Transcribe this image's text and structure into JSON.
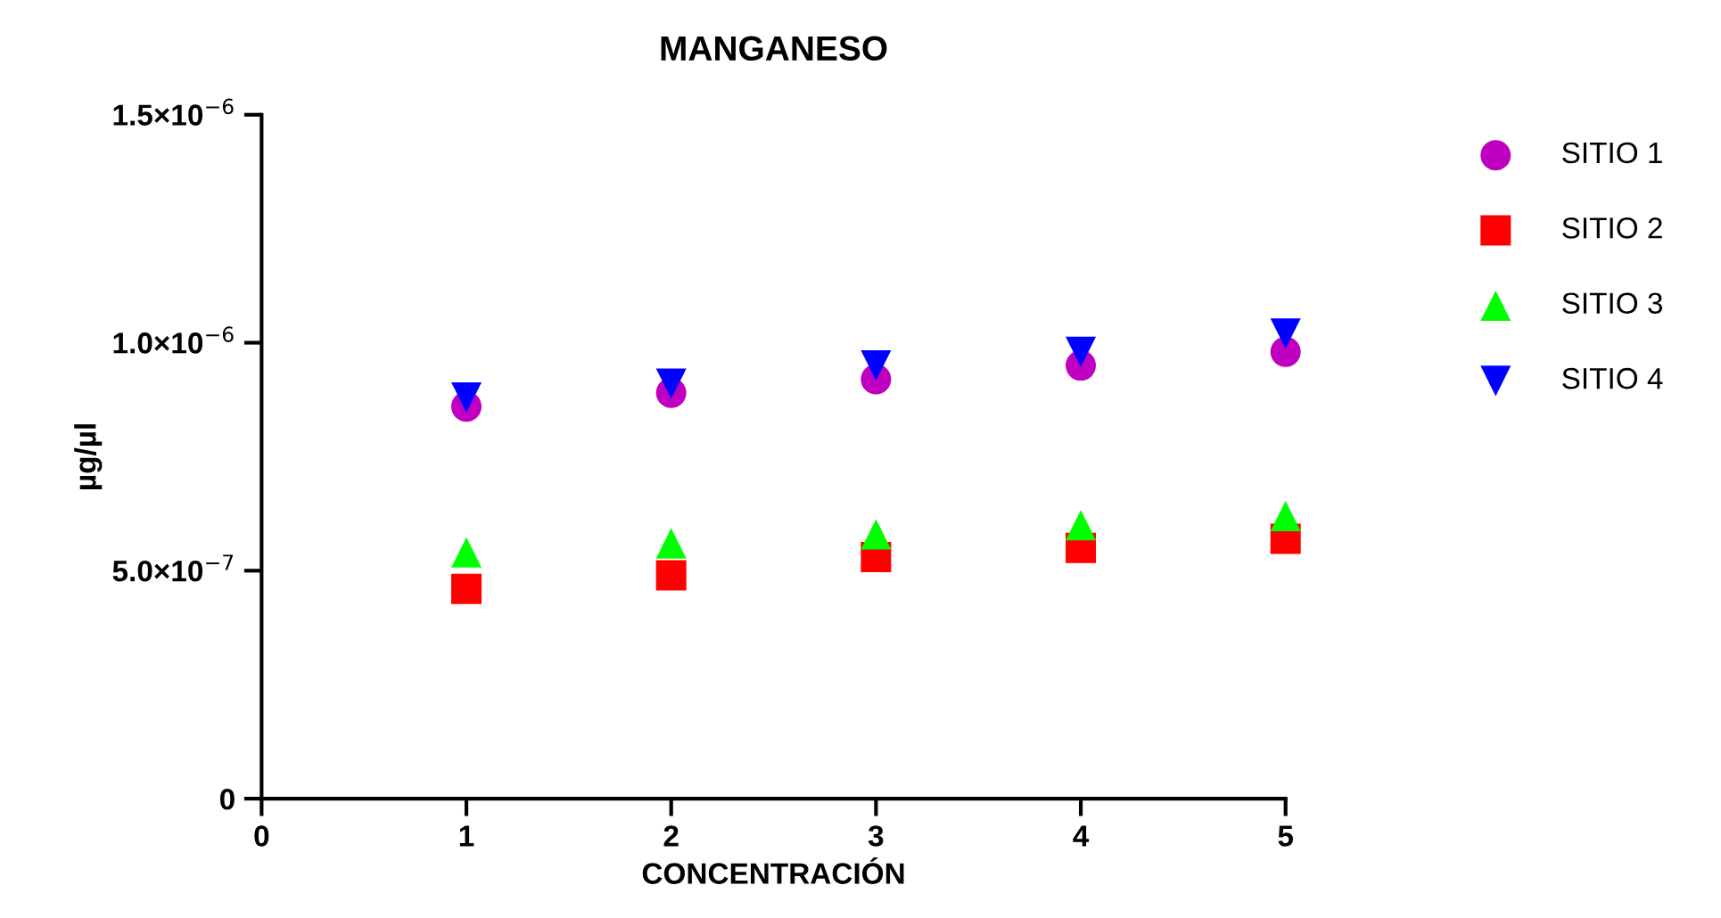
{
  "chart_data": {
    "type": "scatter",
    "title": "MANGANESO",
    "xlabel": "CONCENTRACIÓN",
    "ylabel": "µg/µl",
    "x": [
      1,
      2,
      3,
      4,
      5
    ],
    "series": [
      {
        "name": "SITIO 1",
        "color": "#c000c0",
        "marker": "circle",
        "values": [
          8.6e-07,
          8.9e-07,
          9.2e-07,
          9.5e-07,
          9.8e-07
        ]
      },
      {
        "name": "SITIO 2",
        "color": "#ff0000",
        "marker": "square",
        "values": [
          4.6e-07,
          4.9e-07,
          5.3e-07,
          5.5e-07,
          5.7e-07
        ]
      },
      {
        "name": "SITIO 3",
        "color": "#00ff00",
        "marker": "triangle",
        "values": [
          5.4e-07,
          5.6e-07,
          5.8e-07,
          6e-07,
          6.2e-07
        ]
      },
      {
        "name": "SITIO 4",
        "color": "#0000ff",
        "marker": "triangle_down",
        "values": [
          8.8e-07,
          9.1e-07,
          9.5e-07,
          9.8e-07,
          1.02e-06
        ]
      }
    ],
    "xlim": [
      0,
      5
    ],
    "xticks": [
      0,
      1,
      2,
      3,
      4,
      5
    ],
    "ylim": [
      0,
      1.5e-06
    ],
    "yticks": [
      {
        "value": 0,
        "label": "0"
      },
      {
        "value": 5e-07,
        "label": "5.0×10$^{−7}$"
      },
      {
        "value": 1e-06,
        "label": "1.0×10$^{−6}$"
      },
      {
        "value": 1.5e-06,
        "label": "1.5×10$^{−6}$"
      }
    ],
    "grid": false,
    "legend": "right"
  }
}
